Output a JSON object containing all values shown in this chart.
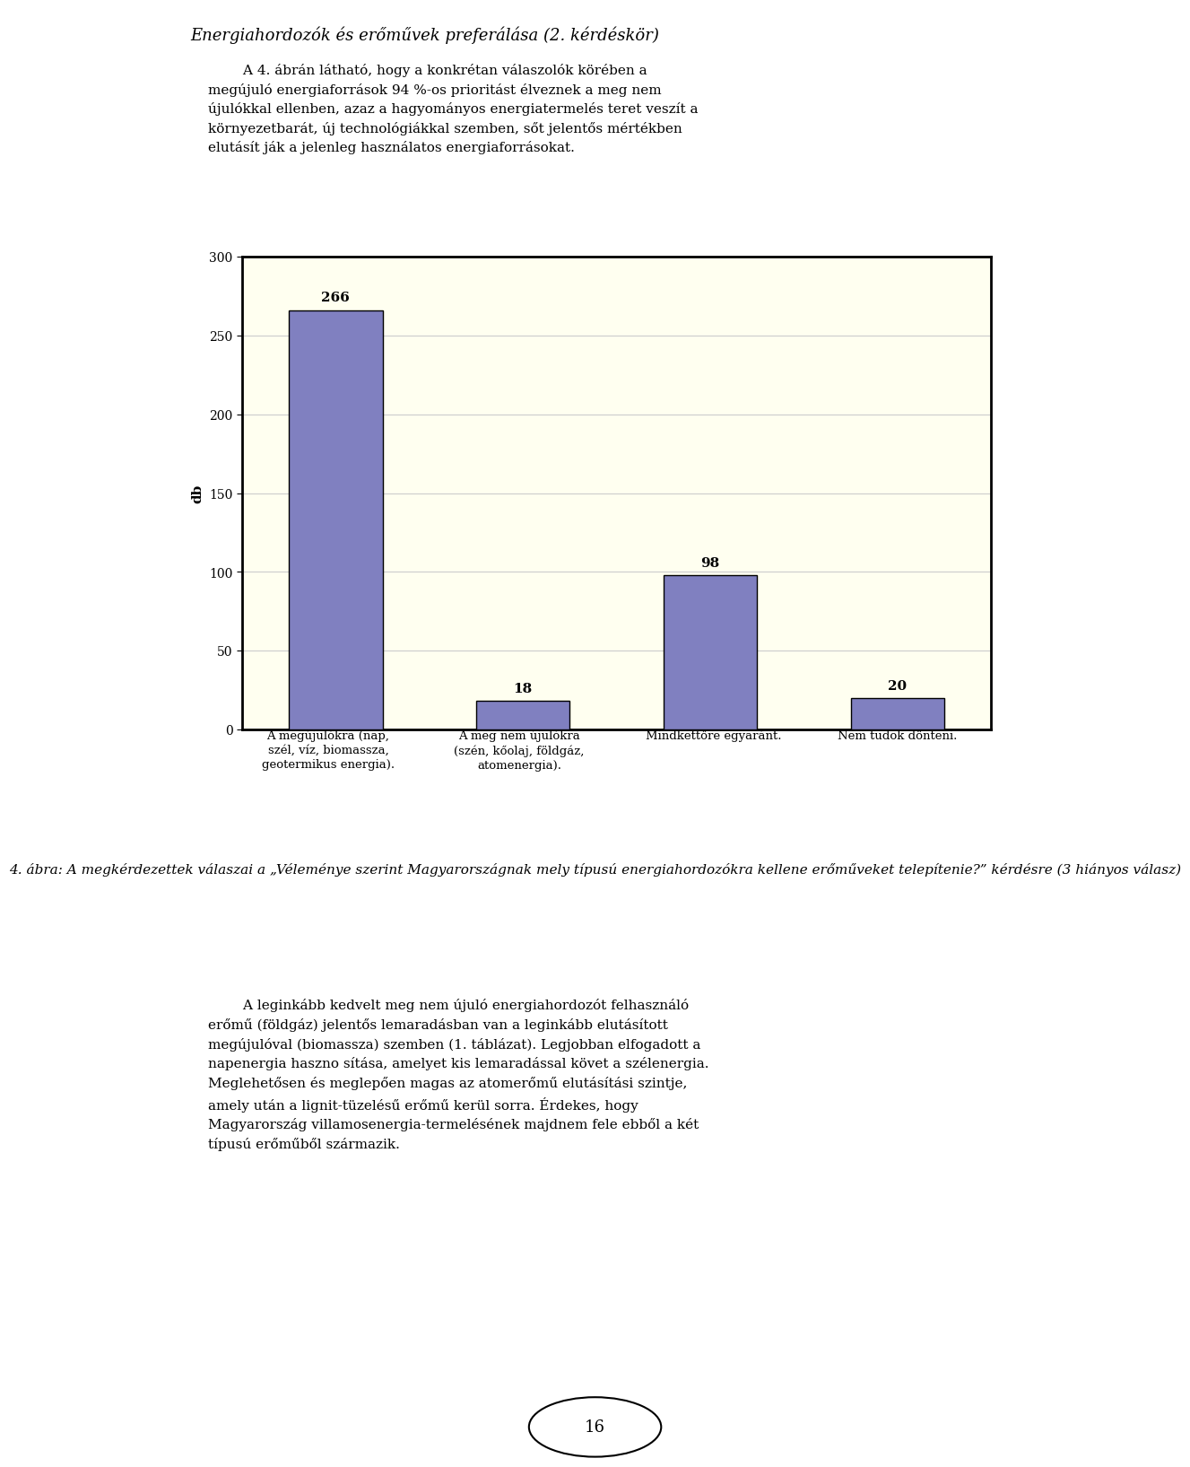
{
  "page_title": "Energiahordozók és erőművek preferálása (2. kérdéskör)",
  "intro_text": "A 4. ábrán látható, hogy a konkrétan válaszolók körében a megújuló energiaforrások 94 %-os prioritást élveznek a meg nem újulókkal ellenben, azaz a hagyományos energiatermelés teret veszít a környezetbarát, új technológiákkal szemben, sőt jelentős mértékben elutásít ják a jelenleg használatos energiaforrásokat.",
  "categories": [
    "A megújulókra (nap,\nszél, víz, biomassza,\ngeotermikus energia).",
    "A meg nem újulókra\n(szén, kőolaj, földgáz,\natomenergia).",
    "Mindkettőre egyaránt.",
    "Nem tudok dönteni."
  ],
  "values": [
    266,
    18,
    98,
    20
  ],
  "bar_color": "#8080c0",
  "bar_edge_color": "#000000",
  "ylabel": "db",
  "ylim": [
    0,
    300
  ],
  "yticks": [
    0,
    50,
    100,
    150,
    200,
    250,
    300
  ],
  "chart_bg_color": "#FFFFF0",
  "chart_border_color": "#000000",
  "caption_text": "4. ábra: A megkérdezettek válaszai a „Véleménye szerint Magyarországnak mely típusú energiahordozókra kellene erőműveket telepítenie?” kérdésre (3 hiányos válasz)",
  "body_text": "A leginkább kedvelt meg nem újuló energiahordozót felhasználó erőmű (földgáz) jelentős lemaradásban van a leginkább elutásított megújulóval (biomassza) szemben (1. táblázat). Legjobban elfogadott a napenergia haszno sítása, amelyet kis lemaradással követ a szélenergia. Meglehetősen és meglepően magas az atomrőmű elutásítási szintje, amely után a lignit-tüzelésű erőmű kerül sorra. Érdekes, hogy Magyarország villamosenergia-termelésének majdnem fele ebből a két típusú erőműből származik.",
  "page_number": "16",
  "grid_color": "#cccccc",
  "title_font_size": 13,
  "body_font_size": 11,
  "caption_font_size": 11
}
